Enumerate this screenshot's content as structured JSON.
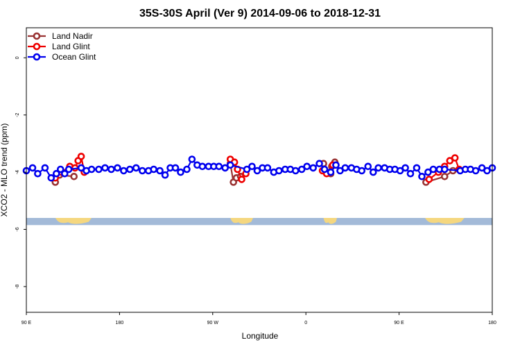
{
  "chart_data": {
    "type": "line",
    "title": "35S-30S April (Ver 9)   2014-09-06 to 2018-12-31",
    "xlabel": "Longitude",
    "ylabel": "XCO2 - MLO trend (ppm)",
    "xlim": [
      90,
      540
    ],
    "ylim": [
      -8.9,
      1.05
    ],
    "x_ticks": [
      {
        "value": 90,
        "label": "90 E"
      },
      {
        "value": 180,
        "label": "180"
      },
      {
        "value": 270,
        "label": "90 W"
      },
      {
        "value": 360,
        "label": "0"
      },
      {
        "value": 450,
        "label": "90 E"
      },
      {
        "value": 540,
        "label": "180"
      }
    ],
    "y_ticks": [
      {
        "value": 0,
        "label": "0"
      },
      {
        "value": -2,
        "label": "-2"
      },
      {
        "value": -4,
        "label": "-4"
      },
      {
        "value": -6,
        "label": "-6"
      },
      {
        "value": -8,
        "label": "-8"
      }
    ],
    "grid": false,
    "legend_position": "top-left",
    "map_strip": {
      "y_range": [
        -5.85,
        -5.6
      ],
      "ocean_color": "#a3bad8",
      "land_color": "#f5d77f",
      "land_segments": [
        [
          118,
          153
        ],
        [
          287,
          309
        ],
        [
          377,
          390
        ],
        [
          475,
          513
        ]
      ]
    },
    "series": [
      {
        "name": "Land Nadir",
        "color": "#993333",
        "points": [
          [
            118,
            -4.35
          ],
          [
            122,
            -4.1
          ],
          [
            136,
            -4.15
          ],
          [
            377,
            -3.7
          ],
          [
            384,
            -4.05
          ],
          [
            385,
            -3.8
          ],
          [
            388,
            -3.65
          ],
          [
            476,
            -4.35
          ],
          [
            494,
            -4.15
          ],
          [
            502,
            -3.95
          ],
          [
            287,
            -3.7
          ],
          [
            290,
            -4.35
          ],
          [
            293,
            -4.2
          ],
          [
            297,
            -4.15
          ]
        ]
      },
      {
        "name": "Land Glint",
        "color": "#ee0000",
        "points": [
          [
            118,
            -4.2
          ],
          [
            124,
            -4.0
          ],
          [
            132,
            -3.8
          ],
          [
            137,
            -3.85
          ],
          [
            140,
            -3.6
          ],
          [
            143,
            -3.45
          ],
          [
            146,
            -4.0
          ],
          [
            287,
            -3.55
          ],
          [
            291,
            -3.65
          ],
          [
            294,
            -3.9
          ],
          [
            298,
            -4.25
          ],
          [
            302,
            -4.05
          ],
          [
            376,
            -3.95
          ],
          [
            380,
            -4.05
          ],
          [
            386,
            -3.75
          ],
          [
            389,
            -3.75
          ],
          [
            479,
            -4.25
          ],
          [
            488,
            -4.0
          ],
          [
            494,
            -3.8
          ],
          [
            499,
            -3.6
          ],
          [
            504,
            -3.5
          ],
          [
            508,
            -3.9
          ]
        ]
      },
      {
        "name": "Ocean Glint",
        "color": "#0000ee",
        "points": [
          [
            90,
            -3.95
          ],
          [
            96,
            -3.85
          ],
          [
            101,
            -4.05
          ],
          [
            108,
            -3.85
          ],
          [
            114,
            -4.2
          ],
          [
            119,
            -4.05
          ],
          [
            123,
            -3.9
          ],
          [
            127,
            -4.05
          ],
          [
            131,
            -3.9
          ],
          [
            143,
            -3.85
          ],
          [
            148,
            -3.95
          ],
          [
            153,
            -3.9
          ],
          [
            160,
            -3.9
          ],
          [
            166,
            -3.85
          ],
          [
            172,
            -3.9
          ],
          [
            178,
            -3.85
          ],
          [
            184,
            -3.95
          ],
          [
            190,
            -3.9
          ],
          [
            196,
            -3.85
          ],
          [
            202,
            -3.95
          ],
          [
            208,
            -3.95
          ],
          [
            213,
            -3.9
          ],
          [
            219,
            -3.95
          ],
          [
            224,
            -4.1
          ],
          [
            229,
            -3.85
          ],
          [
            234,
            -3.85
          ],
          [
            239,
            -4.0
          ],
          [
            245,
            -3.9
          ],
          [
            250,
            -3.55
          ],
          [
            255,
            -3.75
          ],
          [
            260,
            -3.8
          ],
          [
            266,
            -3.8
          ],
          [
            271,
            -3.8
          ],
          [
            276,
            -3.8
          ],
          [
            282,
            -3.85
          ],
          [
            287,
            -3.75
          ],
          [
            303,
            -3.9
          ],
          [
            308,
            -3.8
          ],
          [
            313,
            -3.95
          ],
          [
            318,
            -3.85
          ],
          [
            323,
            -3.85
          ],
          [
            329,
            -4.0
          ],
          [
            334,
            -3.95
          ],
          [
            340,
            -3.9
          ],
          [
            345,
            -3.9
          ],
          [
            350,
            -3.95
          ],
          [
            356,
            -3.9
          ],
          [
            361,
            -3.8
          ],
          [
            367,
            -3.85
          ],
          [
            373,
            -3.7
          ],
          [
            378,
            -3.9
          ],
          [
            384,
            -4.0
          ],
          [
            389,
            -3.75
          ],
          [
            393,
            -3.95
          ],
          [
            398,
            -3.85
          ],
          [
            404,
            -3.85
          ],
          [
            409,
            -3.9
          ],
          [
            414,
            -3.95
          ],
          [
            420,
            -3.8
          ],
          [
            425,
            -4.0
          ],
          [
            430,
            -3.85
          ],
          [
            436,
            -3.85
          ],
          [
            441,
            -3.9
          ],
          [
            446,
            -3.9
          ],
          [
            451,
            -3.95
          ],
          [
            456,
            -3.85
          ],
          [
            461,
            -4.05
          ],
          [
            467,
            -3.85
          ],
          [
            472,
            -4.15
          ],
          [
            478,
            -4.0
          ],
          [
            483,
            -3.9
          ],
          [
            489,
            -3.9
          ],
          [
            494,
            -3.9
          ],
          [
            509,
            -3.95
          ],
          [
            514,
            -3.9
          ],
          [
            519,
            -3.9
          ],
          [
            524,
            -3.95
          ],
          [
            530,
            -3.85
          ],
          [
            535,
            -3.95
          ],
          [
            540,
            -3.85
          ]
        ]
      }
    ]
  }
}
